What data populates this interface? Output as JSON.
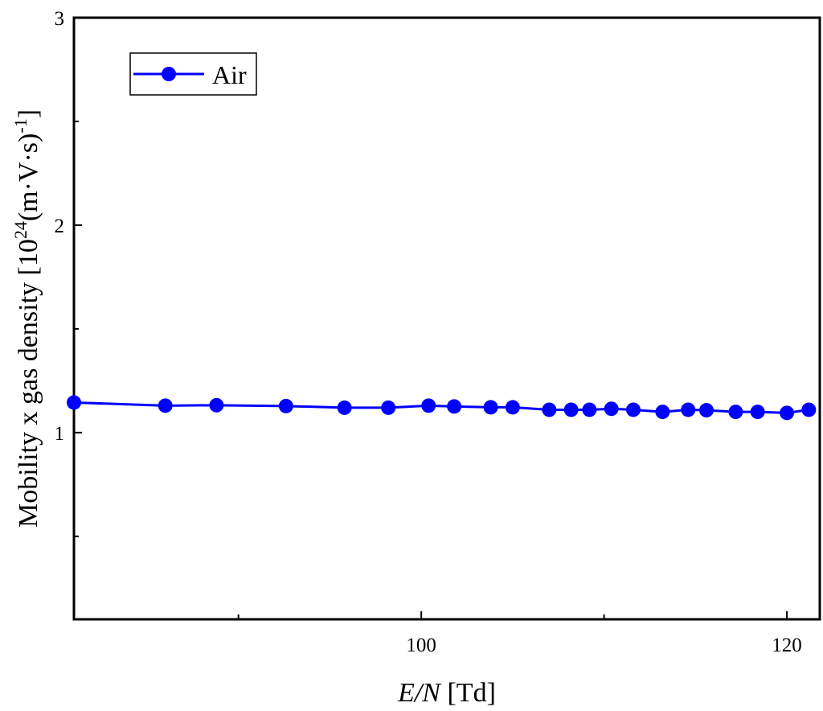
{
  "chart_data": {
    "type": "line",
    "xlabel": {
      "italic": "E/N",
      "rest": " [Td]"
    },
    "ylabel": {
      "pre": "Mobility x gas density [10",
      "sup1": "24",
      "mid": "(m·V·s)",
      "sup2": "-1",
      "post": "]"
    },
    "xlim": [
      81,
      121.8
    ],
    "ylim": [
      0.1,
      3.0
    ],
    "xticks_major": [
      100,
      120
    ],
    "xticks_minor": [
      90,
      110
    ],
    "yticks_major": [
      1,
      2,
      3
    ],
    "yticks_minor": [
      0.5,
      1.5,
      2.5
    ],
    "grid": false,
    "legend_position": "top-left",
    "series": [
      {
        "name": "Air",
        "color": "#0000ff",
        "marker": "circle",
        "x": [
          81.0,
          86.0,
          88.8,
          92.6,
          95.8,
          98.2,
          100.4,
          101.8,
          103.8,
          105.0,
          107.0,
          108.2,
          109.2,
          110.4,
          111.6,
          113.2,
          114.6,
          115.6,
          117.2,
          118.4,
          120.0,
          121.2
        ],
        "y": [
          1.145,
          1.13,
          1.132,
          1.128,
          1.12,
          1.12,
          1.13,
          1.126,
          1.122,
          1.122,
          1.11,
          1.11,
          1.11,
          1.115,
          1.11,
          1.1,
          1.11,
          1.108,
          1.1,
          1.1,
          1.095,
          1.11
        ]
      }
    ]
  }
}
